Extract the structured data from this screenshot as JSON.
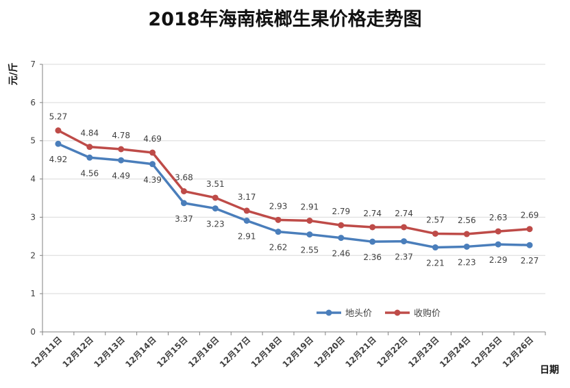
{
  "chart_data": {
    "type": "line",
    "title": "2018年海南槟榔生果价格走势图",
    "xlabel": "日期",
    "ylabel": "元/斤",
    "ylim": [
      0,
      7
    ],
    "yticks": [
      "0",
      "1",
      "2",
      "3",
      "4",
      "5",
      "6",
      "7"
    ],
    "grid": true,
    "legend_position": "bottom-right",
    "categories": [
      "12月11日",
      "12月12日",
      "12月13日",
      "12月14日",
      "12月15日",
      "12月16日",
      "12月17日",
      "12月18日",
      "12月19日",
      "12月20日",
      "12月21日",
      "12月22日",
      "12月23日",
      "12月24日",
      "12月25日",
      "12月26日"
    ],
    "series": [
      {
        "name": "地头价",
        "color": "#4A7EBB",
        "values": [
          4.92,
          4.56,
          4.49,
          4.39,
          3.37,
          3.23,
          2.91,
          2.62,
          2.55,
          2.46,
          2.36,
          2.37,
          2.21,
          2.23,
          2.29,
          2.27
        ],
        "labels": [
          "4.92",
          "4.56",
          "4.49",
          "4.39",
          "3.37",
          "3.23",
          "2.91",
          "2.62",
          "2.55",
          "2.46",
          "2.36",
          "2.37",
          "2.21",
          "2.23",
          "2.29",
          "2.27"
        ],
        "label_position": "below"
      },
      {
        "name": "收购价",
        "color": "#BE4B48",
        "values": [
          5.27,
          4.84,
          4.78,
          4.69,
          3.68,
          3.51,
          3.17,
          2.93,
          2.91,
          2.79,
          2.74,
          2.74,
          2.57,
          2.56,
          2.63,
          2.69
        ],
        "labels": [
          "5.27",
          "4.84",
          "4.78",
          "4.69",
          "3.68",
          "3.51",
          "3.17",
          "2.93",
          "2.91",
          "2.79",
          "2.74",
          "2.74",
          "2.57",
          "2.56",
          "2.63",
          "2.69"
        ],
        "label_position": "above"
      }
    ]
  }
}
